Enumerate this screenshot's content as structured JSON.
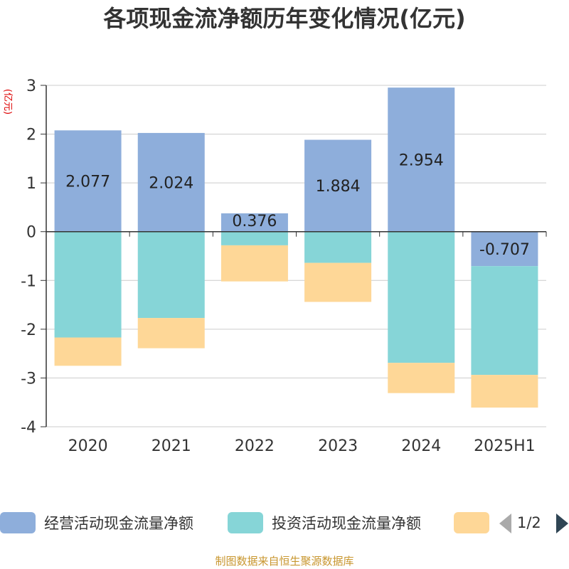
{
  "title": "各项现金流净额历年变化情况(亿元)",
  "unit": "(亿元)",
  "source": "制图数据来自恒生聚源数据库",
  "pager": "1/2",
  "colors": {
    "operating": "#8eaedb",
    "investing": "#86d5d7",
    "financing": "#fed797"
  },
  "chart_data": {
    "type": "bar",
    "stacked": true,
    "categories": [
      "2020",
      "2021",
      "2022",
      "2023",
      "2024",
      "2025H1"
    ],
    "ylim": [
      -4,
      3
    ],
    "yticks": [
      "-4",
      "-3",
      "-2",
      "-1",
      "0",
      "1",
      "2",
      "3"
    ],
    "grid": true,
    "legend_position": "bottom",
    "series": [
      {
        "name": "经营活动现金流量净额",
        "values": [
          2.077,
          2.024,
          0.376,
          1.884,
          2.954,
          -0.707
        ],
        "labels": [
          "2.077",
          "2.024",
          "0.376",
          "1.884",
          "2.954",
          "-0.707"
        ]
      },
      {
        "name": "投资活动现金流量净额",
        "values": [
          -2.17,
          -1.77,
          -0.28,
          -0.64,
          -2.69,
          -2.23
        ]
      },
      {
        "name": "",
        "values": [
          -0.58,
          -0.62,
          -0.74,
          -0.8,
          -0.62,
          -0.67
        ]
      }
    ]
  }
}
